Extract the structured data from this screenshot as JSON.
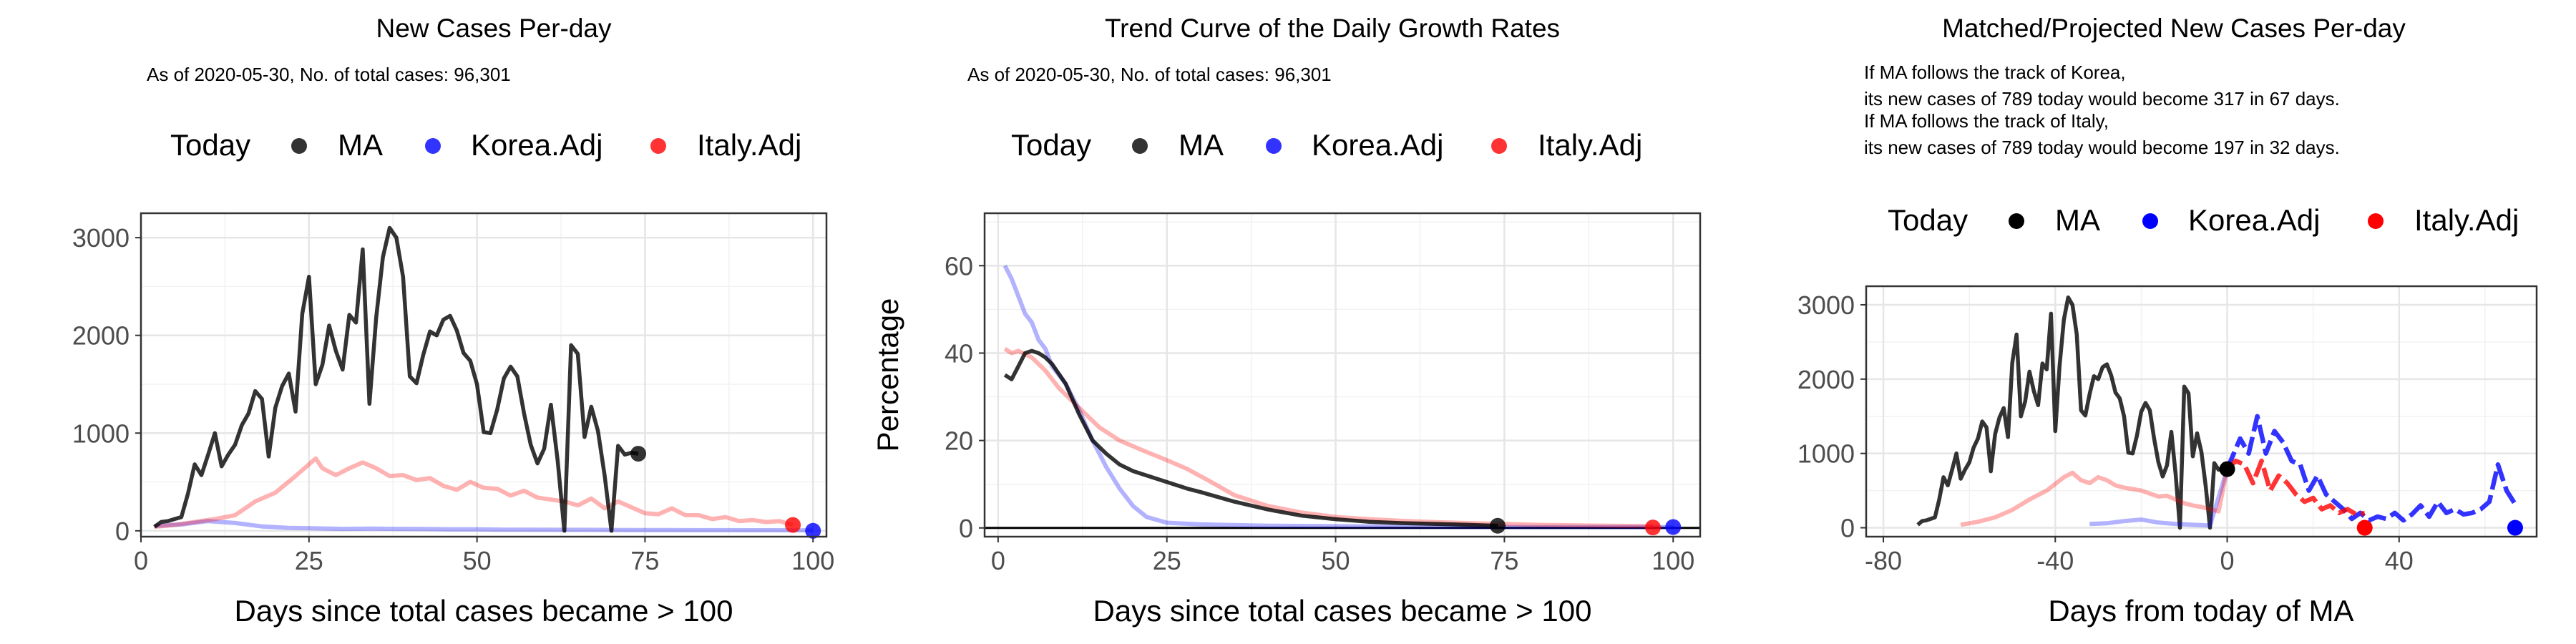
{
  "colors": {
    "MA": "#000000",
    "Korea.Adj": "#0000ff",
    "Italy.Adj": "#ff0000",
    "grid": "#ebebeb",
    "panel_border": "#333333"
  },
  "chart_data": [
    {
      "type": "line",
      "title": "New Cases Per-day",
      "subtitle": "As of 2020-05-30, No. of total cases: 96,301",
      "xlabel": "Days since total cases became > 100",
      "ylabel": "",
      "legend_title": "Today",
      "legend_position": "top",
      "xlim": [
        0,
        102
      ],
      "ylim": [
        -60,
        3250
      ],
      "xticks": [
        0,
        25,
        50,
        75,
        100
      ],
      "xtick_labels": [
        "0",
        "25",
        "50",
        "75",
        "100"
      ],
      "yticks": [
        0,
        1000,
        2000,
        3000
      ],
      "ytick_labels": [
        "0",
        "1000",
        "2000",
        "3000"
      ],
      "grid": true,
      "series": [
        {
          "name": "MA",
          "color": "#000000",
          "x": [
            2,
            3,
            4,
            5,
            6,
            7,
            8,
            9,
            10,
            11,
            12,
            13,
            14,
            15,
            16,
            17,
            18,
            19,
            20,
            21,
            22,
            23,
            24,
            25,
            26,
            27,
            28,
            29,
            30,
            31,
            32,
            33,
            34,
            35,
            36,
            37,
            38,
            39,
            40,
            41,
            42,
            43,
            44,
            45,
            46,
            47,
            48,
            49,
            50,
            51,
            52,
            53,
            54,
            55,
            56,
            57,
            58,
            59,
            60,
            61,
            62,
            63,
            64,
            65,
            66,
            67,
            68,
            69,
            70,
            71,
            72,
            73,
            74
          ],
          "y": [
            40,
            90,
            100,
            120,
            140,
            380,
            680,
            570,
            780,
            1000,
            660,
            780,
            880,
            1080,
            1200,
            1430,
            1350,
            760,
            1260,
            1480,
            1610,
            1220,
            2220,
            2600,
            1500,
            1700,
            2100,
            1840,
            1650,
            2210,
            2130,
            2880,
            1300,
            2180,
            2800,
            3100,
            3000,
            2600,
            1580,
            1510,
            1800,
            2040,
            2000,
            2160,
            2200,
            2050,
            1820,
            1740,
            1500,
            1010,
            1000,
            1240,
            1560,
            1680,
            1580,
            1200,
            880,
            690,
            840,
            1290,
            720,
            0,
            1900,
            1810,
            960,
            1270,
            1020,
            560,
            0,
            870,
            780,
            800,
            789
          ]
        },
        {
          "name": "Korea.Adj",
          "color": "#0000ff",
          "x": [
            2,
            6,
            10,
            14,
            18,
            22,
            26,
            30,
            34,
            38,
            42,
            46,
            50,
            54,
            58,
            62,
            66,
            70,
            74,
            78,
            82,
            86,
            90,
            94,
            98,
            100
          ],
          "y": [
            50,
            65,
            100,
            80,
            45,
            30,
            25,
            20,
            22,
            20,
            18,
            15,
            15,
            12,
            12,
            10,
            10,
            9,
            8,
            8,
            7,
            7,
            6,
            6,
            5,
            5
          ]
        },
        {
          "name": "Italy.Adj",
          "color": "#ff0000",
          "x": [
            2,
            5,
            8,
            11,
            14,
            17,
            20,
            23,
            25,
            26,
            27,
            29,
            31,
            33,
            35,
            37,
            39,
            41,
            43,
            45,
            47,
            49,
            51,
            53,
            55,
            57,
            59,
            61,
            63,
            65,
            67,
            69,
            71,
            73,
            75,
            77,
            79,
            81,
            83,
            85,
            87,
            89,
            91,
            93,
            95,
            97
          ],
          "y": [
            40,
            60,
            90,
            120,
            160,
            300,
            390,
            560,
            680,
            740,
            640,
            570,
            640,
            700,
            640,
            560,
            570,
            520,
            540,
            460,
            420,
            500,
            440,
            430,
            360,
            410,
            340,
            320,
            300,
            260,
            330,
            230,
            300,
            240,
            180,
            170,
            230,
            160,
            160,
            120,
            140,
            100,
            110,
            90,
            100,
            60
          ]
        }
      ],
      "today": [
        {
          "name": "MA",
          "x": 74,
          "y": 789
        },
        {
          "name": "Korea.Adj",
          "x": 100,
          "y": 0
        },
        {
          "name": "Italy.Adj",
          "x": 97,
          "y": 60
        }
      ]
    },
    {
      "type": "line",
      "title": "Trend Curve of the Daily Growth Rates",
      "subtitle": "As of 2020-05-30, No. of total cases: 96,301",
      "xlabel": "Days since total cases became > 100",
      "ylabel": "Percentage",
      "legend_title": "Today",
      "legend_position": "top",
      "xlim": [
        -2,
        104
      ],
      "ylim": [
        -2,
        72
      ],
      "xticks": [
        0,
        25,
        50,
        75,
        100
      ],
      "xtick_labels": [
        "0",
        "25",
        "50",
        "75",
        "100"
      ],
      "yticks": [
        0,
        20,
        40,
        60
      ],
      "ytick_labels": [
        "0",
        "20",
        "40",
        "60"
      ],
      "grid": true,
      "hline": 0,
      "series": [
        {
          "name": "MA",
          "color": "#000000",
          "x": [
            1,
            2,
            3,
            4,
            5,
            6,
            7,
            8,
            10,
            12,
            14,
            16,
            18,
            20,
            22,
            25,
            28,
            30,
            35,
            40,
            45,
            50,
            55,
            60,
            65,
            70,
            74
          ],
          "y": [
            35,
            34,
            37,
            40,
            40.5,
            40,
            39,
            37.5,
            33,
            26,
            20,
            17,
            14.5,
            13,
            12,
            10.5,
            9,
            8.2,
            6,
            4.2,
            2.8,
            2,
            1.4,
            1.1,
            0.9,
            0.7,
            0.5
          ]
        },
        {
          "name": "Korea.Adj",
          "color": "#0000ff",
          "x": [
            1,
            2,
            3,
            4,
            5,
            6,
            7,
            8,
            10,
            12,
            14,
            16,
            18,
            20,
            22,
            25,
            30,
            40,
            60,
            80,
            100
          ],
          "y": [
            60,
            57,
            53,
            49,
            47,
            43,
            41,
            37,
            33,
            27,
            20,
            14,
            9,
            5,
            2.5,
            1.2,
            0.8,
            0.5,
            0.3,
            0.2,
            0.2
          ]
        },
        {
          "name": "Italy.Adj",
          "color": "#ff0000",
          "x": [
            1,
            2,
            3,
            5,
            7,
            9,
            11,
            13,
            15,
            18,
            21,
            25,
            28,
            31,
            35,
            40,
            45,
            50,
            55,
            60,
            65,
            70,
            75,
            80,
            85,
            90,
            97
          ],
          "y": [
            41,
            40,
            40.5,
            39,
            36,
            32,
            29,
            26,
            23,
            20,
            18,
            15.5,
            13.5,
            11,
            7.5,
            5,
            3.5,
            2.5,
            2,
            1.6,
            1.3,
            1.1,
            0.9,
            0.7,
            0.6,
            0.5,
            0.4
          ]
        }
      ],
      "today": [
        {
          "name": "MA",
          "x": 74,
          "y": 0.5
        },
        {
          "name": "Korea.Adj",
          "x": 100,
          "y": 0.2
        },
        {
          "name": "Italy.Adj",
          "x": 97,
          "y": 0.1
        }
      ]
    },
    {
      "type": "line",
      "title": "Matched/Projected New Cases Per-day",
      "subtitle": "",
      "annotation_lines": [
        "If MA follows the track of Korea,",
        "its new cases of 789 today would become 317 in 67 days.",
        "If MA follows the track of Italy,",
        "its new cases of 789 today would become 197 in 32 days."
      ],
      "xlabel": "Days from today of MA",
      "ylabel": "",
      "legend_title": "Today",
      "legend_position": "top",
      "xlim": [
        -84,
        72
      ],
      "ylim": [
        -120,
        3250
      ],
      "xticks": [
        -80,
        -40,
        0,
        40
      ],
      "xtick_labels": [
        "-80",
        "-40",
        "0",
        "40"
      ],
      "yticks": [
        0,
        1000,
        2000,
        3000
      ],
      "ytick_labels": [
        "0",
        "1000",
        "2000",
        "3000"
      ],
      "grid": true,
      "series": [
        {
          "name": "MA",
          "color": "#000000",
          "x": [
            -72,
            -71,
            -70,
            -69,
            -68,
            -67,
            -66,
            -65,
            -64,
            -63,
            -62,
            -61,
            -60,
            -59,
            -58,
            -57,
            -56,
            -55,
            -54,
            -53,
            -52,
            -51,
            -50,
            -49,
            -48,
            -47,
            -46,
            -45,
            -44,
            -43,
            -42,
            -41,
            -40,
            -39,
            -38,
            -37,
            -36,
            -35,
            -34,
            -33,
            -32,
            -31,
            -30,
            -29,
            -28,
            -27,
            -26,
            -25,
            -24,
            -23,
            -22,
            -21,
            -20,
            -19,
            -18,
            -17,
            -16,
            -15,
            -14,
            -13,
            -12,
            -11,
            -10,
            -9,
            -8,
            -7,
            -6,
            -5,
            -4,
            -3,
            -2,
            -1,
            0
          ],
          "y": [
            40,
            90,
            100,
            120,
            140,
            380,
            680,
            570,
            780,
            1000,
            660,
            780,
            880,
            1080,
            1200,
            1430,
            1350,
            760,
            1260,
            1480,
            1610,
            1220,
            2220,
            2600,
            1500,
            1700,
            2100,
            1840,
            1650,
            2210,
            2130,
            2880,
            1300,
            2180,
            2800,
            3100,
            3000,
            2600,
            1580,
            1510,
            1800,
            2040,
            2000,
            2160,
            2200,
            2050,
            1820,
            1740,
            1500,
            1010,
            1000,
            1240,
            1560,
            1680,
            1580,
            1200,
            880,
            690,
            840,
            1290,
            720,
            0,
            1900,
            1810,
            960,
            1270,
            1020,
            560,
            0,
            870,
            780,
            800,
            789
          ]
        },
        {
          "name": "Korea.Adj",
          "color": "#0000ff",
          "x": [
            -32,
            -28,
            -24,
            -20,
            -16,
            -12,
            -8,
            -4,
            0,
            3,
            5,
            7,
            9,
            11,
            13,
            15,
            17,
            19,
            21,
            23,
            25,
            27,
            29,
            31,
            33,
            35,
            37,
            39,
            41,
            43,
            45,
            47,
            49,
            51,
            53,
            55,
            57,
            59,
            61,
            63,
            65,
            67
          ],
          "y": [
            50,
            60,
            90,
            110,
            70,
            50,
            40,
            30,
            789,
            1200,
            1000,
            1500,
            1000,
            1300,
            1150,
            900,
            850,
            500,
            700,
            450,
            350,
            250,
            120,
            200,
            100,
            150,
            120,
            200,
            100,
            180,
            300,
            150,
            350,
            200,
            250,
            180,
            200,
            250,
            350,
            850,
            500,
            317
          ]
        },
        {
          "name": "Italy.Adj",
          "color": "#ff0000",
          "x": [
            -62,
            -58,
            -54,
            -50,
            -46,
            -42,
            -38,
            -36,
            -34,
            -32,
            -30,
            -28,
            -26,
            -24,
            -22,
            -20,
            -18,
            -16,
            -14,
            -12,
            -10,
            -8,
            -6,
            -4,
            -2,
            0,
            2,
            4,
            6,
            8,
            10,
            12,
            14,
            16,
            18,
            20,
            22,
            24,
            26,
            28,
            30,
            32
          ],
          "y": [
            40,
            80,
            140,
            240,
            380,
            500,
            680,
            740,
            640,
            600,
            680,
            640,
            570,
            540,
            520,
            500,
            460,
            420,
            430,
            380,
            330,
            300,
            280,
            250,
            220,
            789,
            900,
            850,
            600,
            900,
            500,
            700,
            600,
            450,
            350,
            400,
            250,
            300,
            200,
            250,
            180,
            197
          ]
        }
      ],
      "today": [
        {
          "name": "MA",
          "x": 0,
          "y": 789
        },
        {
          "name": "Korea.Adj",
          "x": 67,
          "y": 0
        },
        {
          "name": "Italy.Adj",
          "x": 32,
          "y": 0
        }
      ]
    }
  ]
}
